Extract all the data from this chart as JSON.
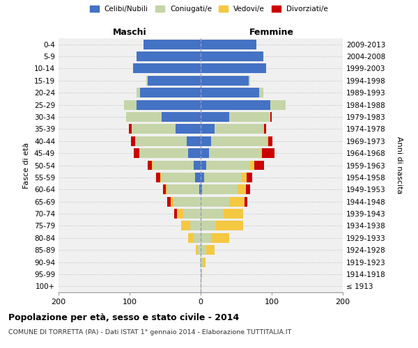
{
  "age_groups": [
    "100+",
    "95-99",
    "90-94",
    "85-89",
    "80-84",
    "75-79",
    "70-74",
    "65-69",
    "60-64",
    "55-59",
    "50-54",
    "45-49",
    "40-44",
    "35-39",
    "30-34",
    "25-29",
    "20-24",
    "15-19",
    "10-14",
    "5-9",
    "0-4"
  ],
  "birth_years": [
    "≤ 1913",
    "1914-1918",
    "1919-1923",
    "1924-1928",
    "1929-1933",
    "1934-1938",
    "1939-1943",
    "1944-1948",
    "1949-1953",
    "1954-1958",
    "1959-1963",
    "1964-1968",
    "1969-1973",
    "1974-1978",
    "1979-1983",
    "1984-1988",
    "1989-1993",
    "1994-1998",
    "1999-2003",
    "2004-2008",
    "2009-2013"
  ],
  "maschi_celibi": [
    0,
    0,
    0,
    0,
    0,
    0,
    0,
    0,
    2,
    8,
    10,
    18,
    20,
    35,
    55,
    90,
    85,
    75,
    95,
    90,
    80
  ],
  "maschi_coniugati": [
    0,
    0,
    1,
    4,
    10,
    15,
    25,
    38,
    45,
    48,
    58,
    68,
    72,
    62,
    50,
    18,
    5,
    1,
    0,
    0,
    0
  ],
  "maschi_vedovi": [
    0,
    0,
    0,
    3,
    8,
    12,
    8,
    4,
    2,
    1,
    1,
    0,
    0,
    0,
    0,
    0,
    0,
    0,
    0,
    0,
    0
  ],
  "maschi_divorziati": [
    0,
    0,
    0,
    0,
    0,
    0,
    4,
    5,
    4,
    6,
    6,
    8,
    6,
    4,
    0,
    0,
    0,
    0,
    0,
    0,
    0
  ],
  "femmine_nubili": [
    0,
    0,
    0,
    0,
    0,
    0,
    0,
    0,
    2,
    5,
    8,
    12,
    15,
    20,
    40,
    98,
    82,
    68,
    92,
    88,
    78
  ],
  "femmine_coniugate": [
    0,
    1,
    3,
    8,
    15,
    22,
    32,
    40,
    50,
    52,
    62,
    72,
    78,
    68,
    58,
    22,
    6,
    2,
    0,
    0,
    0
  ],
  "femmine_vedove": [
    1,
    1,
    4,
    12,
    25,
    38,
    28,
    22,
    12,
    8,
    5,
    2,
    2,
    1,
    0,
    0,
    0,
    0,
    0,
    0,
    0
  ],
  "femmine_divorziate": [
    0,
    0,
    0,
    0,
    0,
    0,
    0,
    4,
    6,
    8,
    14,
    18,
    6,
    3,
    2,
    0,
    0,
    0,
    0,
    0,
    0
  ],
  "colors": {
    "celibi": "#4472c4",
    "coniugati": "#c5d5a8",
    "vedovi": "#f5c842",
    "divorziati": "#cc0000"
  },
  "xlim": 200,
  "title": "Popolazione per età, sesso e stato civile - 2014",
  "subtitle": "COMUNE DI TORRETTA (PA) - Dati ISTAT 1° gennaio 2014 - Elaborazione TUTTITALIA.IT",
  "ylabel_left": "Fasce di età",
  "ylabel_right": "Anni di nascita",
  "xlabel_left": "Maschi",
  "xlabel_right": "Femmine",
  "bg_color": "#f0f0f0"
}
